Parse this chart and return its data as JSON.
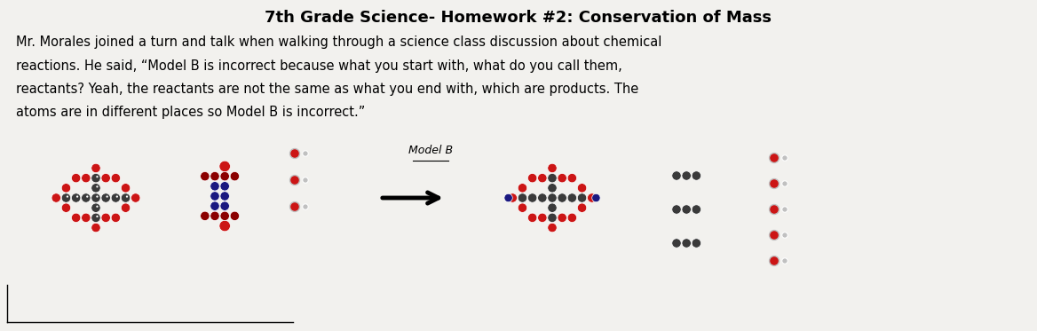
{
  "title": "7th Grade Science- Homework #2: Conservation of Mass",
  "body_line1": "Mr. Morales joined a turn and talk when walking through a science class discussion about chemical",
  "body_line2": "reactions. He said, “Model B is incorrect because what you start with, what do you call them,",
  "body_line3": "reactants? Yeah, the reactants are not the same as what you end with, which are products. The",
  "body_line4": "atoms are in different places so Model B is incorrect.”",
  "model_label": "Model B",
  "bg_color": "#cccac5",
  "paper_color": "#f2f1ee",
  "title_fontsize": 13,
  "body_fontsize": 10.5,
  "model_fontsize": 9,
  "RED": "#cc1515",
  "DKRED": "#8b0000",
  "GREY": "#3a3a3a",
  "NAVY": "#1a1880",
  "LGREY": "#c0c0c0",
  "WHITE": "#ffffff"
}
